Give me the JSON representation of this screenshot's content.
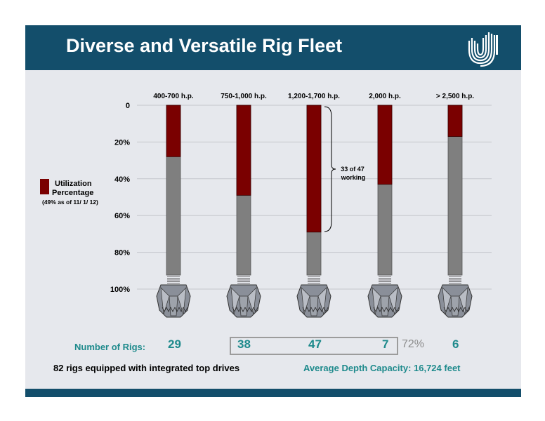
{
  "title": "Diverse and Versatile Rig Fleet",
  "colors": {
    "header": "#134e6b",
    "utilization": "#7a0000",
    "bar": "#7f7f7f",
    "teal": "#1e8a8c",
    "background": "#e6e8ed"
  },
  "legend": {
    "label_line1": "Utilization",
    "label_line2": "Percentage",
    "note": "(49%  as of 11/ 1/ 12)"
  },
  "bracket_annotation": {
    "line1": "33 of 47",
    "line2": "working"
  },
  "rigs": {
    "label": "Number of Rigs:",
    "counts": [
      "29",
      "38",
      "47",
      "7",
      "6"
    ],
    "group_percent": "72%"
  },
  "footer": {
    "left": "82 rigs equipped with integrated top drives",
    "right": "Average Depth Capacity: 16,724 feet"
  },
  "chart_data": {
    "type": "bar",
    "categories": [
      "400-700 h.p.",
      "750-1,000 h.p.",
      "1,200-1,700 h.p.",
      "2,000 h.p.",
      "> 2,500 h.p."
    ],
    "values": [
      28,
      49,
      69,
      43,
      17
    ],
    "y_axis": {
      "inverted": true,
      "ylim": [
        0,
        100
      ],
      "ticks": [
        "0",
        "20%",
        "40%",
        "60%",
        "80%",
        "100%"
      ]
    },
    "grid": true
  }
}
